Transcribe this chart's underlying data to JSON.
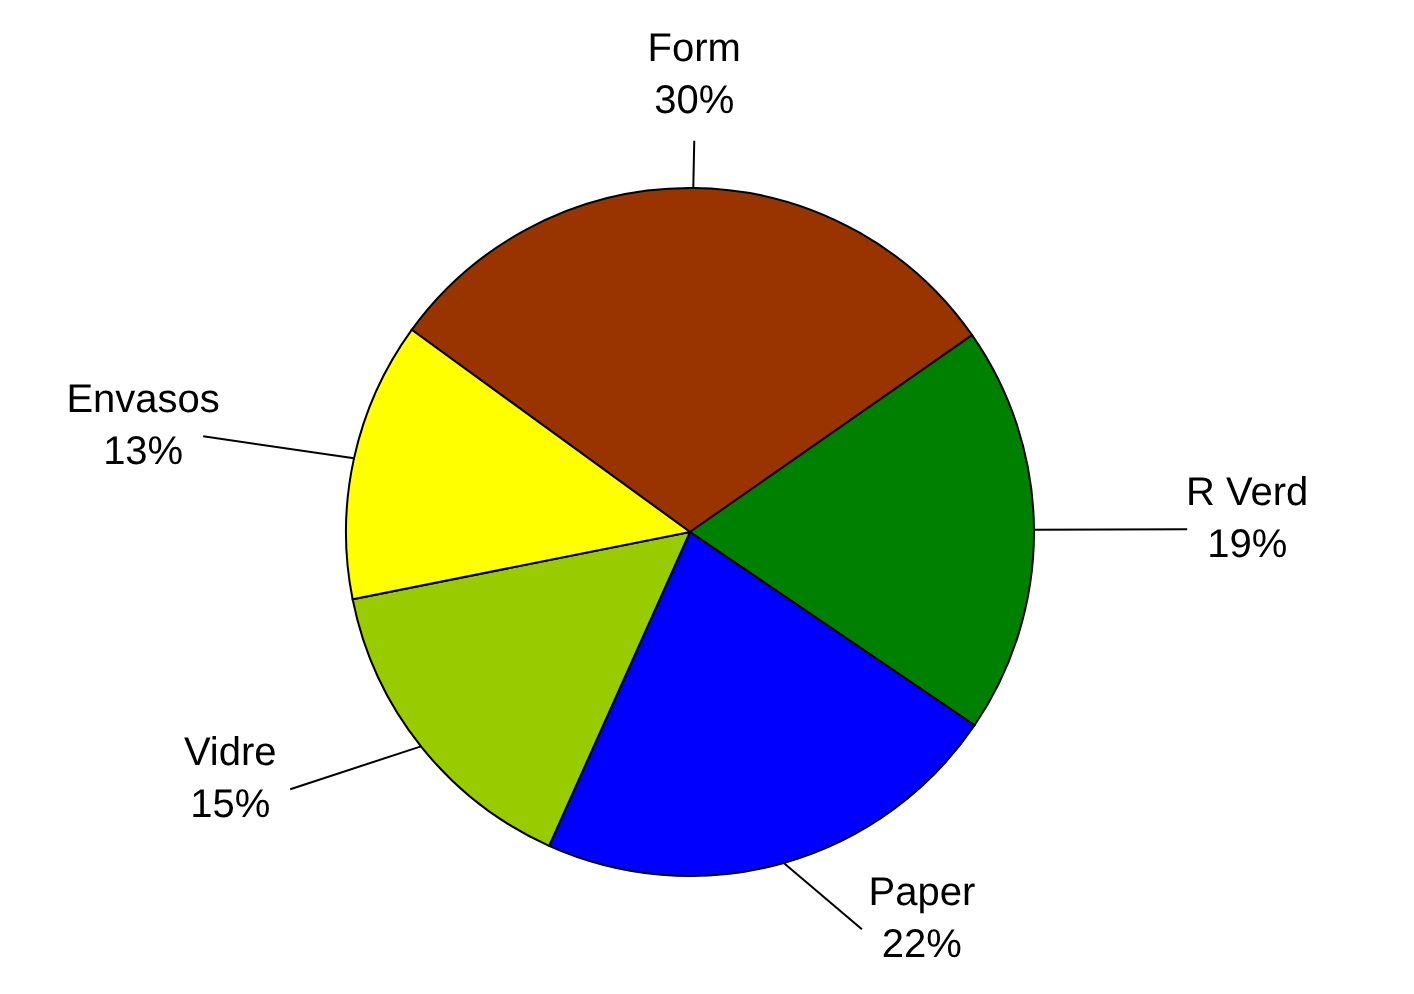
{
  "chart_data": {
    "type": "pie",
    "categories": [
      "Form",
      "R Verd",
      "Paper",
      "Vidre",
      "Envasos"
    ],
    "values": [
      30,
      19,
      22,
      15,
      13
    ],
    "colors": [
      "#993300",
      "#008000",
      "#0000ff",
      "#99cc00",
      "#ffff00"
    ],
    "value_labels": [
      "30%",
      "19%",
      "22%",
      "15%",
      "13%"
    ]
  }
}
